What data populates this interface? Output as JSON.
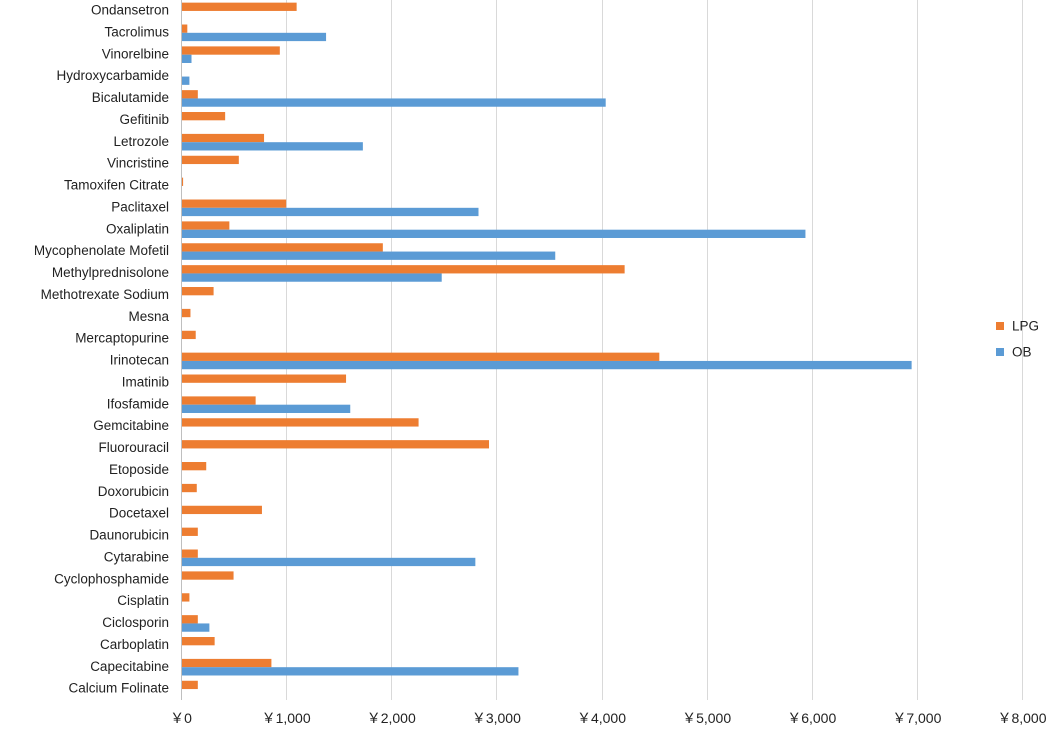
{
  "chart_data": {
    "type": "bar",
    "orientation": "horizontal",
    "categories": [
      "Ondansetron",
      "Tacrolimus",
      "Vinorelbine",
      "Hydroxycarbamide",
      "Bicalutamide",
      "Gefitinib",
      "Letrozole",
      "Vincristine",
      "Tamoxifen Citrate",
      "Paclitaxel",
      "Oxaliplatin",
      "Mycophenolate Mofetil",
      "Methylprednisolone",
      "Methotrexate Sodium",
      "Mesna",
      "Mercaptopurine",
      "Irinotecan",
      "Imatinib",
      "Ifosfamide",
      "Gemcitabine",
      "Fluorouracil",
      "Etoposide",
      "Doxorubicin",
      "Docetaxel",
      "Daunorubicin",
      "Cytarabine",
      "Cyclophosphamide",
      "Cisplatin",
      "Ciclosporin",
      "Carboplatin",
      "Capecitabine",
      "Calcium Folinate"
    ],
    "series": [
      {
        "name": "LPG",
        "color": "#ED7D31",
        "values": [
          1100,
          60,
          940,
          0,
          160,
          420,
          790,
          550,
          20,
          1000,
          460,
          1920,
          4220,
          310,
          90,
          140,
          4550,
          1570,
          710,
          2260,
          2930,
          240,
          150,
          770,
          160,
          160,
          500,
          80,
          160,
          320,
          860,
          160
        ]
      },
      {
        "name": "OB",
        "color": "#5B9BD5",
        "values": [
          0,
          1380,
          100,
          80,
          4040,
          0,
          1730,
          0,
          0,
          2830,
          5940,
          3560,
          2480,
          0,
          0,
          0,
          6950,
          0,
          1610,
          0,
          0,
          0,
          0,
          0,
          0,
          2800,
          0,
          0,
          270,
          0,
          3210,
          0
        ]
      }
    ],
    "xlim": [
      0,
      8000
    ],
    "x_ticks": [
      0,
      1000,
      2000,
      3000,
      4000,
      5000,
      6000,
      7000,
      8000
    ],
    "x_tick_labels": [
      "￥0",
      "￥1,000",
      "￥2,000",
      "￥3,000",
      "￥4,000",
      "￥5,000",
      "￥6,000",
      "￥7,000",
      "￥8,000"
    ],
    "grid": "vertical",
    "legend": {
      "position": "right",
      "entries": [
        "LPG",
        "OB"
      ]
    },
    "title": "",
    "xlabel": "",
    "ylabel": ""
  }
}
